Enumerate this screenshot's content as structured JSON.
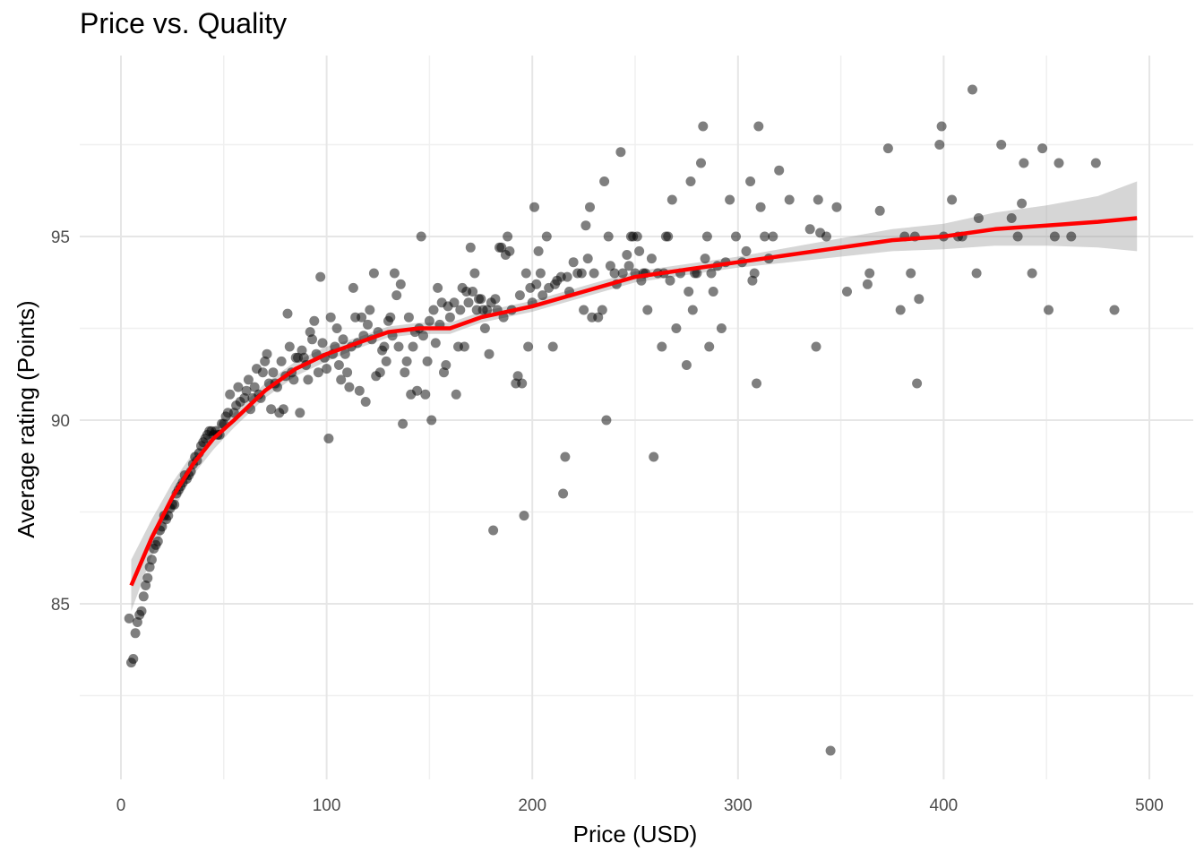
{
  "chart_data": {
    "type": "scatter",
    "title": "Price vs. Quality",
    "xlabel": "Price (USD)",
    "ylabel": "Average rating (Points)",
    "xlim": [
      -10,
      510
    ],
    "ylim": [
      80.5,
      99.7
    ],
    "x_ticks": [
      0,
      100,
      200,
      300,
      400,
      500
    ],
    "x_minor_ticks": [
      50,
      150,
      250,
      350,
      450
    ],
    "y_ticks": [
      85,
      90,
      95
    ],
    "y_minor_ticks": [
      82.5,
      87.5,
      92.5,
      97.5
    ],
    "grid": true,
    "colors": {
      "points": "#000000",
      "smooth_line": "#ff0000",
      "confidence_band": "#999999"
    },
    "points": [
      [
        4,
        84.6
      ],
      [
        5,
        83.4
      ],
      [
        6,
        83.5
      ],
      [
        7,
        84.2
      ],
      [
        8,
        84.5
      ],
      [
        9,
        84.7
      ],
      [
        10,
        84.8
      ],
      [
        11,
        85.2
      ],
      [
        12,
        85.5
      ],
      [
        13,
        85.7
      ],
      [
        14,
        86.0
      ],
      [
        15,
        86.2
      ],
      [
        16,
        86.5
      ],
      [
        17,
        86.6
      ],
      [
        18,
        86.7
      ],
      [
        19,
        87.0
      ],
      [
        20,
        87.1
      ],
      [
        21,
        87.4
      ],
      [
        22,
        87.3
      ],
      [
        23,
        87.4
      ],
      [
        24,
        87.6
      ],
      [
        25,
        87.7
      ],
      [
        26,
        87.7
      ],
      [
        27,
        88.0
      ],
      [
        28,
        88.1
      ],
      [
        29,
        88.2
      ],
      [
        30,
        88.3
      ],
      [
        31,
        88.5
      ],
      [
        32,
        88.4
      ],
      [
        33,
        88.5
      ],
      [
        34,
        88.6
      ],
      [
        35,
        88.8
      ],
      [
        36,
        89.0
      ],
      [
        37,
        88.9
      ],
      [
        38,
        89.1
      ],
      [
        39,
        89.3
      ],
      [
        40,
        89.4
      ],
      [
        41,
        89.5
      ],
      [
        42,
        89.6
      ],
      [
        43,
        89.7
      ],
      [
        44,
        89.7
      ],
      [
        45,
        89.6
      ],
      [
        46,
        89.7
      ],
      [
        47,
        89.6
      ],
      [
        48,
        89.6
      ],
      [
        49,
        89.9
      ],
      [
        50,
        89.9
      ],
      [
        51,
        90.1
      ],
      [
        52,
        90.2
      ],
      [
        53,
        90.7
      ],
      [
        55,
        90.2
      ],
      [
        56,
        90.4
      ],
      [
        57,
        90.9
      ],
      [
        58,
        90.5
      ],
      [
        60,
        90.6
      ],
      [
        61,
        90.8
      ],
      [
        62,
        91.1
      ],
      [
        63,
        90.3
      ],
      [
        64,
        90.6
      ],
      [
        65,
        90.9
      ],
      [
        66,
        91.4
      ],
      [
        67,
        90.7
      ],
      [
        68,
        90.6
      ],
      [
        69,
        91.3
      ],
      [
        70,
        91.6
      ],
      [
        71,
        91.8
      ],
      [
        72,
        91.0
      ],
      [
        73,
        90.3
      ],
      [
        74,
        91.3
      ],
      [
        75,
        91.0
      ],
      [
        76,
        90.9
      ],
      [
        77,
        90.2
      ],
      [
        78,
        91.6
      ],
      [
        79,
        90.3
      ],
      [
        80,
        91.2
      ],
      [
        81,
        92.9
      ],
      [
        82,
        92.0
      ],
      [
        83,
        91.3
      ],
      [
        84,
        91.1
      ],
      [
        85,
        91.7
      ],
      [
        86,
        91.7
      ],
      [
        87,
        90.2
      ],
      [
        88,
        91.9
      ],
      [
        89,
        91.7
      ],
      [
        90,
        91.5
      ],
      [
        91,
        91.1
      ],
      [
        92,
        92.4
      ],
      [
        93,
        92.2
      ],
      [
        94,
        92.7
      ],
      [
        95,
        91.8
      ],
      [
        96,
        91.3
      ],
      [
        97,
        93.9
      ],
      [
        98,
        92.1
      ],
      [
        99,
        91.7
      ],
      [
        100,
        91.4
      ],
      [
        101,
        89.5
      ],
      [
        102,
        92.8
      ],
      [
        103,
        91.8
      ],
      [
        104,
        92.0
      ],
      [
        105,
        92.5
      ],
      [
        106,
        91.5
      ],
      [
        107,
        91.1
      ],
      [
        108,
        92.2
      ],
      [
        109,
        91.8
      ],
      [
        110,
        91.3
      ],
      [
        111,
        90.9
      ],
      [
        112,
        92.0
      ],
      [
        113,
        93.6
      ],
      [
        114,
        92.8
      ],
      [
        115,
        92.1
      ],
      [
        116,
        90.8
      ],
      [
        117,
        92.8
      ],
      [
        118,
        92.3
      ],
      [
        119,
        90.5
      ],
      [
        120,
        92.6
      ],
      [
        121,
        93.0
      ],
      [
        122,
        92.2
      ],
      [
        123,
        94.0
      ],
      [
        124,
        91.2
      ],
      [
        125,
        92.4
      ],
      [
        126,
        91.3
      ],
      [
        127,
        91.9
      ],
      [
        128,
        92.0
      ],
      [
        129,
        91.6
      ],
      [
        130,
        92.7
      ],
      [
        131,
        92.8
      ],
      [
        132,
        92.3
      ],
      [
        133,
        94.0
      ],
      [
        134,
        93.4
      ],
      [
        135,
        92.0
      ],
      [
        136,
        93.7
      ],
      [
        137,
        89.9
      ],
      [
        138,
        91.3
      ],
      [
        139,
        91.6
      ],
      [
        140,
        92.8
      ],
      [
        141,
        90.7
      ],
      [
        142,
        92.0
      ],
      [
        143,
        92.4
      ],
      [
        144,
        90.8
      ],
      [
        145,
        92.5
      ],
      [
        146,
        95.0
      ],
      [
        147,
        92.3
      ],
      [
        148,
        90.7
      ],
      [
        149,
        91.6
      ],
      [
        150,
        92.7
      ],
      [
        151,
        90.0
      ],
      [
        152,
        93.0
      ],
      [
        153,
        92.1
      ],
      [
        154,
        93.6
      ],
      [
        155,
        92.6
      ],
      [
        156,
        93.2
      ],
      [
        157,
        91.3
      ],
      [
        158,
        91.5
      ],
      [
        159,
        93.1
      ],
      [
        160,
        92.8
      ],
      [
        162,
        93.2
      ],
      [
        163,
        90.7
      ],
      [
        164,
        92.0
      ],
      [
        165,
        93.0
      ],
      [
        166,
        93.6
      ],
      [
        167,
        92.0
      ],
      [
        168,
        93.5
      ],
      [
        169,
        93.2
      ],
      [
        170,
        94.7
      ],
      [
        171,
        93.5
      ],
      [
        172,
        94.0
      ],
      [
        173,
        93.0
      ],
      [
        174,
        93.3
      ],
      [
        175,
        93.3
      ],
      [
        176,
        93.0
      ],
      [
        177,
        92.5
      ],
      [
        178,
        93.0
      ],
      [
        179,
        91.8
      ],
      [
        180,
        93.2
      ],
      [
        181,
        87.0
      ],
      [
        182,
        93.3
      ],
      [
        183,
        93.0
      ],
      [
        184,
        94.7
      ],
      [
        185,
        94.7
      ],
      [
        186,
        92.8
      ],
      [
        187,
        94.5
      ],
      [
        188,
        95.0
      ],
      [
        189,
        94.6
      ],
      [
        190,
        93.0
      ],
      [
        192,
        91.0
      ],
      [
        193,
        91.2
      ],
      [
        194,
        93.4
      ],
      [
        195,
        91.0
      ],
      [
        196,
        87.4
      ],
      [
        197,
        94.0
      ],
      [
        198,
        92.0
      ],
      [
        199,
        93.6
      ],
      [
        200,
        93.2
      ],
      [
        201,
        95.8
      ],
      [
        202,
        93.7
      ],
      [
        203,
        94.6
      ],
      [
        204,
        94.0
      ],
      [
        205,
        93.4
      ],
      [
        207,
        95.0
      ],
      [
        208,
        93.6
      ],
      [
        210,
        92.0
      ],
      [
        211,
        93.7
      ],
      [
        212,
        93.8
      ],
      [
        214,
        93.9
      ],
      [
        215,
        88.0
      ],
      [
        216,
        89.0
      ],
      [
        217,
        93.9
      ],
      [
        218,
        93.5
      ],
      [
        220,
        94.3
      ],
      [
        222,
        94.0
      ],
      [
        224,
        94.0
      ],
      [
        225,
        93.0
      ],
      [
        226,
        95.3
      ],
      [
        227,
        94.4
      ],
      [
        228,
        95.8
      ],
      [
        229,
        92.8
      ],
      [
        230,
        94.0
      ],
      [
        232,
        92.8
      ],
      [
        234,
        93.0
      ],
      [
        235,
        96.5
      ],
      [
        236,
        90.0
      ],
      [
        237,
        95.0
      ],
      [
        238,
        94.2
      ],
      [
        240,
        94.0
      ],
      [
        241,
        93.7
      ],
      [
        243,
        97.3
      ],
      [
        244,
        94.0
      ],
      [
        246,
        94.5
      ],
      [
        247,
        94.2
      ],
      [
        248,
        95.0
      ],
      [
        249,
        95.0
      ],
      [
        250,
        94.0
      ],
      [
        251,
        95.0
      ],
      [
        252,
        94.6
      ],
      [
        253,
        93.8
      ],
      [
        254,
        94.0
      ],
      [
        255,
        94.0
      ],
      [
        256,
        93.0
      ],
      [
        258,
        94.4
      ],
      [
        259,
        89.0
      ],
      [
        261,
        94.0
      ],
      [
        263,
        92.0
      ],
      [
        264,
        94.0
      ],
      [
        265,
        95.0
      ],
      [
        266,
        95.0
      ],
      [
        267,
        93.8
      ],
      [
        268,
        96.0
      ],
      [
        270,
        92.5
      ],
      [
        272,
        94.0
      ],
      [
        275,
        91.5
      ],
      [
        276,
        93.5
      ],
      [
        277,
        96.5
      ],
      [
        278,
        93.0
      ],
      [
        279,
        94.0
      ],
      [
        280,
        94.0
      ],
      [
        282,
        97.0
      ],
      [
        283,
        98.0
      ],
      [
        284,
        94.4
      ],
      [
        285,
        95.0
      ],
      [
        286,
        92.0
      ],
      [
        287,
        94.0
      ],
      [
        288,
        93.5
      ],
      [
        290,
        94.2
      ],
      [
        292,
        92.5
      ],
      [
        294,
        94.3
      ],
      [
        296,
        96.0
      ],
      [
        299,
        95.0
      ],
      [
        302,
        94.3
      ],
      [
        304,
        94.6
      ],
      [
        306,
        96.5
      ],
      [
        307,
        93.8
      ],
      [
        308,
        94.0
      ],
      [
        309,
        91.0
      ],
      [
        310,
        98.0
      ],
      [
        311,
        95.8
      ],
      [
        313,
        95.0
      ],
      [
        315,
        94.4
      ],
      [
        317,
        95.0
      ],
      [
        320,
        96.8
      ],
      [
        325,
        96.0
      ],
      [
        335,
        95.2
      ],
      [
        338,
        92.0
      ],
      [
        339,
        96.0
      ],
      [
        340,
        95.1
      ],
      [
        343,
        95.0
      ],
      [
        348,
        95.8
      ],
      [
        353,
        93.5
      ],
      [
        363,
        93.7
      ],
      [
        364,
        94.0
      ],
      [
        369,
        95.7
      ],
      [
        373,
        97.4
      ],
      [
        379,
        93.0
      ],
      [
        381,
        95.0
      ],
      [
        384,
        94.0
      ],
      [
        386,
        95.0
      ],
      [
        387,
        91.0
      ],
      [
        388,
        93.3
      ],
      [
        398,
        97.5
      ],
      [
        399,
        98.0
      ],
      [
        400,
        95.0
      ],
      [
        404,
        96.0
      ],
      [
        407,
        95.0
      ],
      [
        409,
        95.0
      ],
      [
        414,
        99.0
      ],
      [
        416,
        94.0
      ],
      [
        417,
        95.5
      ],
      [
        428,
        97.5
      ],
      [
        433,
        95.5
      ],
      [
        436,
        95.0
      ],
      [
        438,
        95.9
      ],
      [
        439,
        97.0
      ],
      [
        443,
        94.0
      ],
      [
        448,
        97.4
      ],
      [
        451,
        93.0
      ],
      [
        454,
        95.0
      ],
      [
        456,
        97.0
      ],
      [
        462,
        95.0
      ],
      [
        474,
        97.0
      ],
      [
        483,
        93.0
      ],
      [
        345,
        81.0
      ]
    ],
    "smooth": {
      "x": [
        5,
        15,
        25,
        35,
        45,
        55,
        70,
        85,
        100,
        115,
        130,
        145,
        160,
        175,
        200,
        225,
        250,
        275,
        300,
        325,
        350,
        375,
        400,
        425,
        450,
        475,
        494
      ],
      "y": [
        85.5,
        86.8,
        87.9,
        88.8,
        89.5,
        90.0,
        90.8,
        91.4,
        91.8,
        92.1,
        92.4,
        92.5,
        92.5,
        92.8,
        93.1,
        93.5,
        93.9,
        94.1,
        94.3,
        94.5,
        94.7,
        94.9,
        95.0,
        95.2,
        95.3,
        95.4,
        95.5
      ],
      "lower": [
        84.8,
        86.3,
        87.5,
        88.5,
        89.2,
        89.8,
        90.6,
        91.2,
        91.6,
        91.95,
        92.25,
        92.35,
        92.35,
        92.65,
        92.95,
        93.35,
        93.75,
        93.95,
        94.15,
        94.3,
        94.45,
        94.6,
        94.65,
        94.75,
        94.75,
        94.7,
        94.6
      ],
      "upper": [
        86.2,
        87.3,
        88.3,
        89.1,
        89.8,
        90.2,
        91.0,
        91.6,
        92.0,
        92.25,
        92.55,
        92.65,
        92.65,
        92.95,
        93.25,
        93.65,
        94.05,
        94.25,
        94.45,
        94.7,
        94.95,
        95.2,
        95.35,
        95.65,
        95.85,
        96.1,
        96.5
      ]
    }
  }
}
